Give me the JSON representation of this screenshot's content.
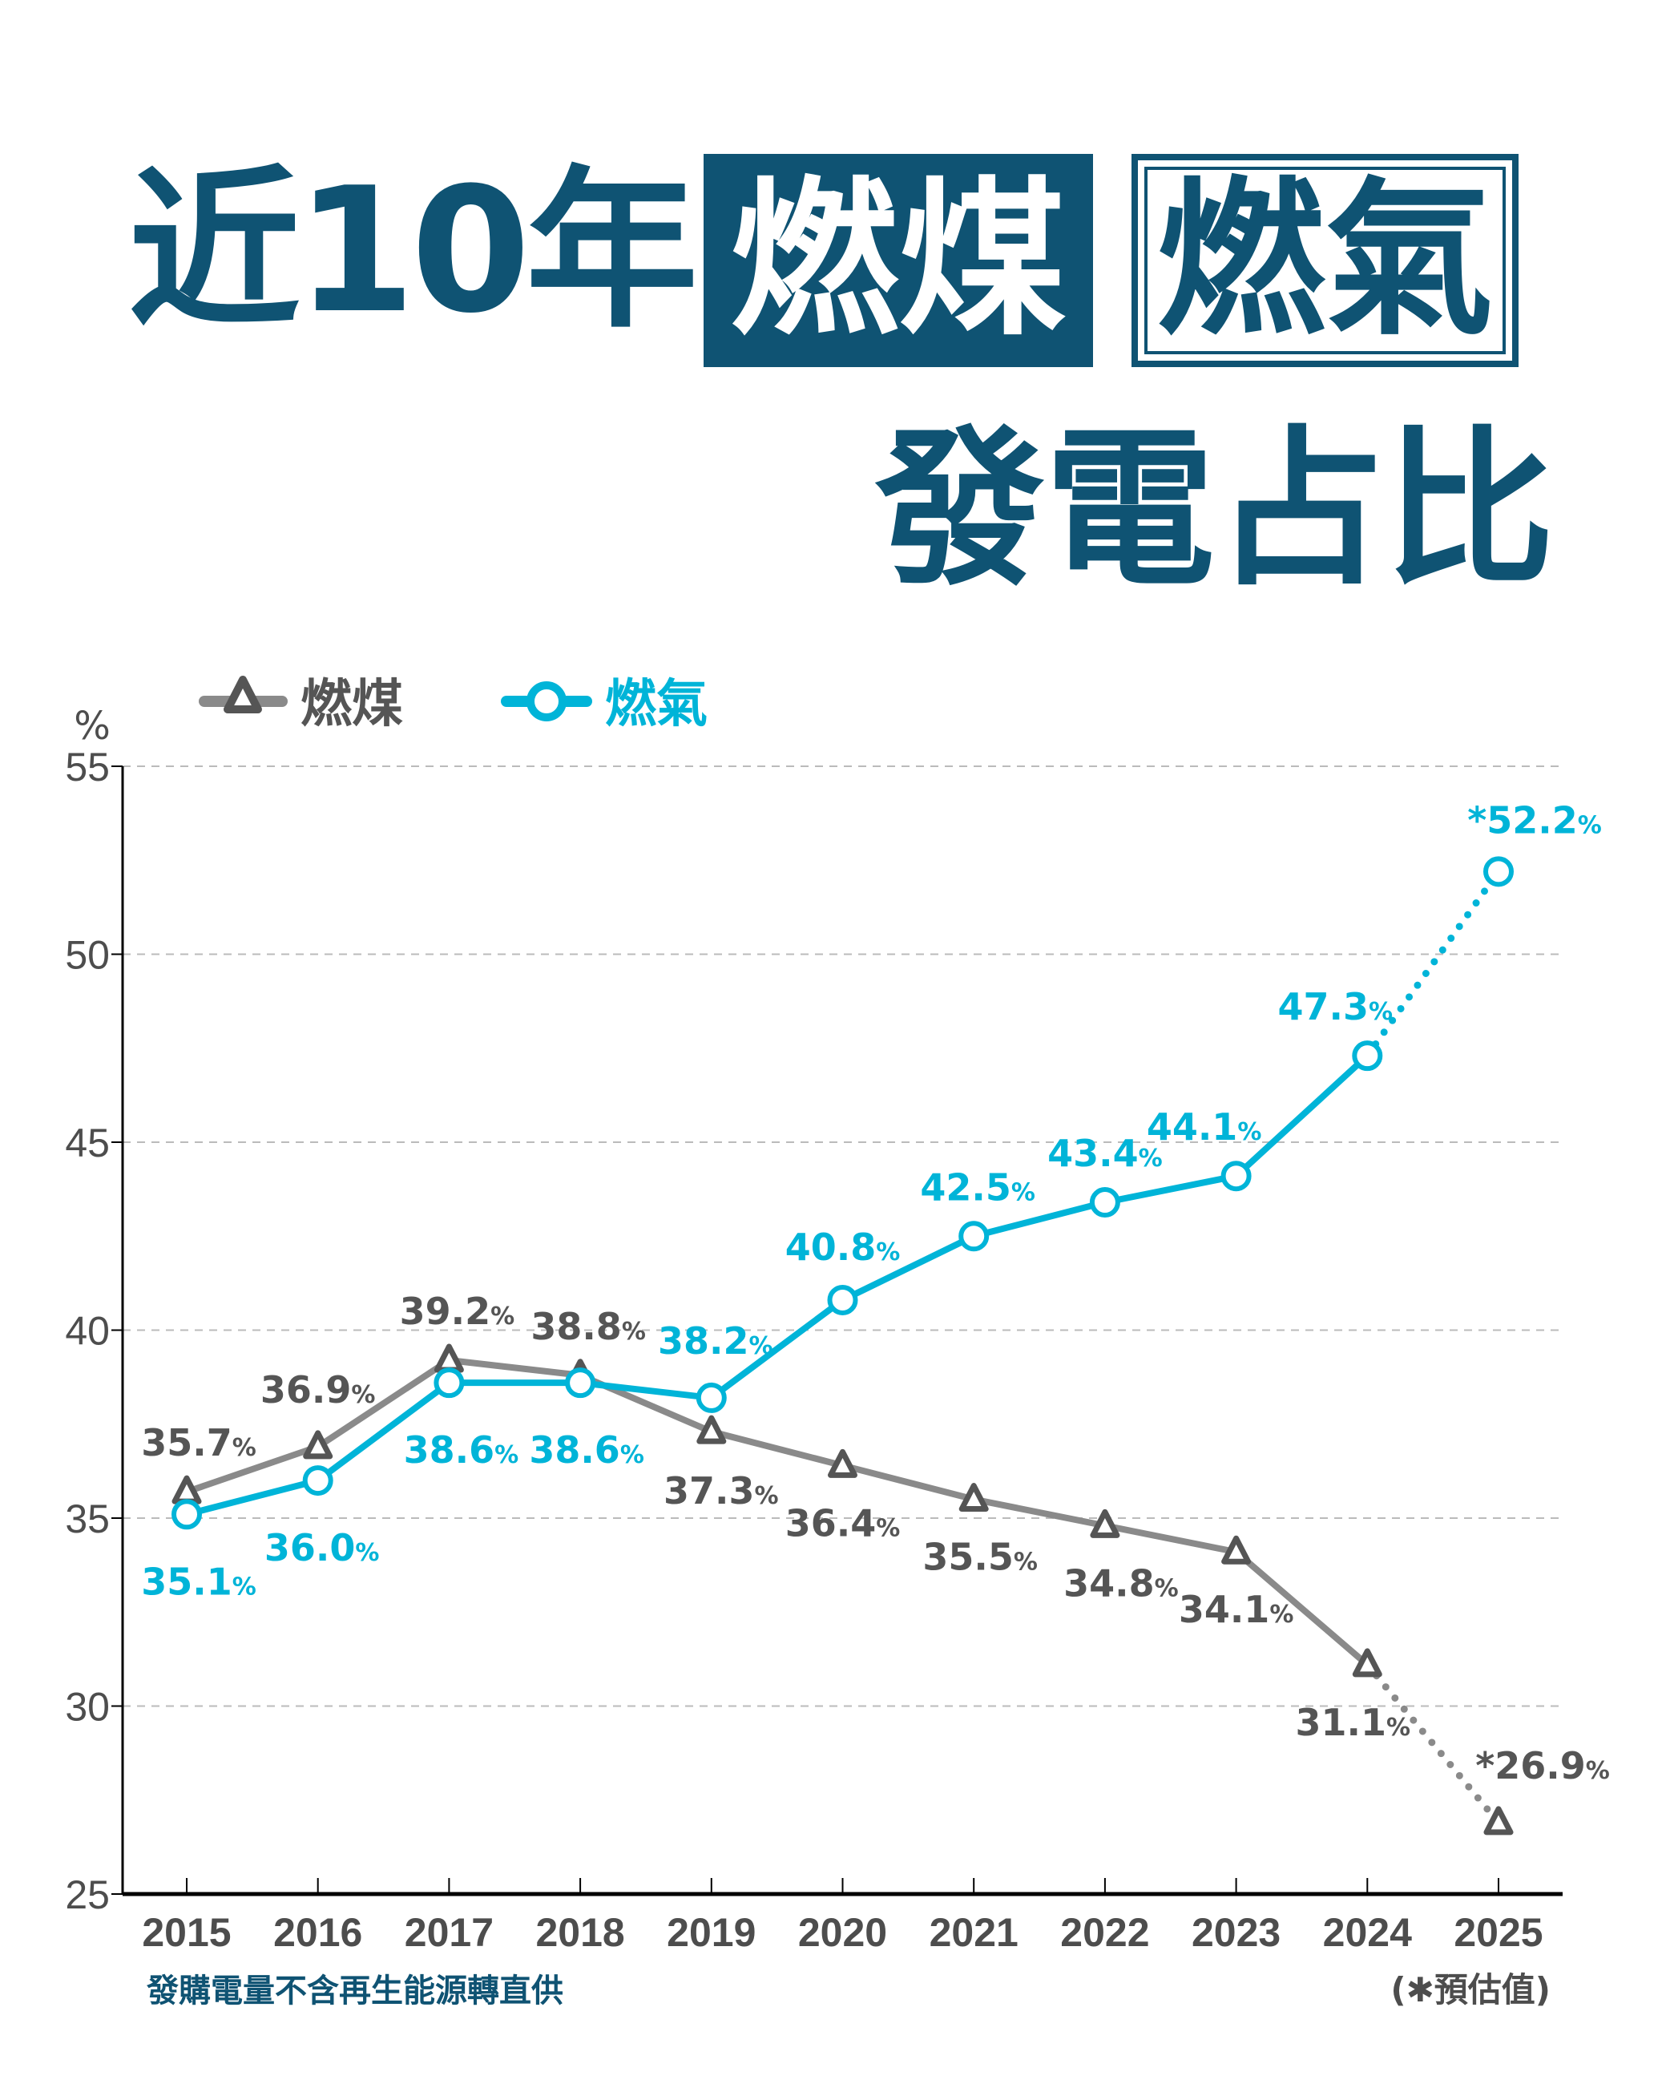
{
  "title": {
    "part1": "近10年",
    "coal_box": "燃煤",
    "gas_box": "燃氣",
    "line2": "發電占比"
  },
  "colors": {
    "title": "#0f5373",
    "coal_line": "#8a8a8a",
    "coal_marker": "#555555",
    "gas": "#00b4d8",
    "axis": "#000000",
    "grid": "#bbbbbb"
  },
  "chart_data": {
    "type": "line",
    "ylabel": "%",
    "ylim": [
      25,
      55
    ],
    "yticks": [
      25,
      30,
      35,
      40,
      45,
      50,
      55
    ],
    "grid": "horizontal dashed",
    "legend_placement": "top-left",
    "categories": [
      "2015",
      "2016",
      "2017",
      "2018",
      "2019",
      "2020",
      "2021",
      "2022",
      "2023",
      "2024",
      "2025"
    ],
    "series": [
      {
        "name": "燃煤",
        "marker": "triangle",
        "values": [
          35.7,
          36.9,
          39.2,
          38.8,
          37.3,
          36.4,
          35.5,
          34.8,
          34.1,
          31.1,
          26.9
        ],
        "labels": [
          "35.7",
          "36.9",
          "39.2",
          "38.8",
          "37.3",
          "36.4",
          "35.5",
          "34.8",
          "34.1",
          "31.1",
          "*26.9"
        ],
        "estimated_last": true
      },
      {
        "name": "燃氣",
        "marker": "circle",
        "values": [
          35.1,
          36.0,
          38.6,
          38.6,
          38.2,
          40.8,
          42.5,
          43.4,
          44.1,
          47.3,
          52.2
        ],
        "labels": [
          "35.1",
          "36.0",
          "38.6",
          "38.6",
          "38.2",
          "40.8",
          "42.5",
          "43.4",
          "44.1",
          "47.3",
          "*52.2"
        ],
        "estimated_last": true
      }
    ],
    "label_unit": "%",
    "footnote": "發購電量不含再生能源轉直供",
    "estimate_note": "(✱預估值)"
  }
}
